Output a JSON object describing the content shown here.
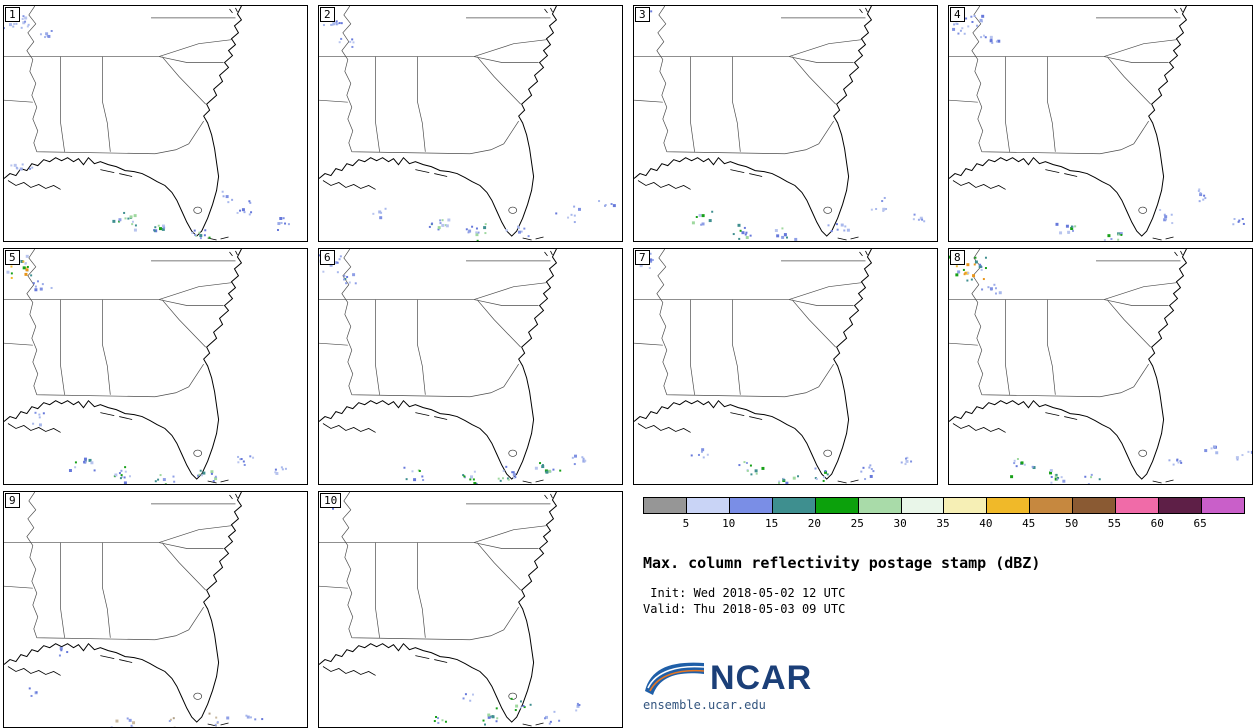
{
  "panels": [
    {
      "label": "1",
      "echoes": [
        [
          14,
          14,
          16,
          9,
          "blue"
        ],
        [
          40,
          26,
          6,
          6,
          "blue"
        ],
        [
          18,
          160,
          8,
          8,
          "blue"
        ],
        [
          118,
          215,
          14,
          10,
          "mix"
        ],
        [
          152,
          226,
          10,
          8,
          "mix"
        ],
        [
          196,
          228,
          10,
          8,
          "mix"
        ],
        [
          242,
          204,
          8,
          9,
          "blue"
        ],
        [
          282,
          218,
          7,
          7,
          "blue"
        ],
        [
          222,
          190,
          5,
          6,
          "blue"
        ]
      ]
    },
    {
      "label": "2",
      "echoes": [
        [
          12,
          16,
          12,
          8,
          "blue"
        ],
        [
          30,
          34,
          6,
          6,
          "blue"
        ],
        [
          60,
          210,
          5,
          6,
          "blue"
        ],
        [
          120,
          220,
          12,
          9,
          "mix"
        ],
        [
          158,
          228,
          12,
          9,
          "mix"
        ],
        [
          200,
          225,
          8,
          8,
          "blue"
        ],
        [
          250,
          210,
          7,
          8,
          "blue"
        ],
        [
          288,
          200,
          5,
          6,
          "blue"
        ]
      ]
    },
    {
      "label": "3",
      "echoes": [
        [
          10,
          12,
          8,
          7,
          "blue"
        ],
        [
          70,
          212,
          8,
          8,
          "mix"
        ],
        [
          110,
          226,
          10,
          8,
          "mix"
        ],
        [
          150,
          230,
          8,
          7,
          "mix"
        ],
        [
          205,
          222,
          8,
          8,
          "blue"
        ],
        [
          245,
          200,
          7,
          8,
          "blue"
        ],
        [
          285,
          212,
          6,
          6,
          "blue"
        ]
      ]
    },
    {
      "label": "4",
      "echoes": [
        [
          16,
          18,
          22,
          12,
          "blue"
        ],
        [
          44,
          34,
          8,
          7,
          "blue"
        ],
        [
          120,
          222,
          10,
          8,
          "mix"
        ],
        [
          165,
          230,
          8,
          7,
          "mix"
        ],
        [
          215,
          210,
          7,
          7,
          "blue"
        ],
        [
          252,
          192,
          8,
          8,
          "blue"
        ],
        [
          288,
          215,
          6,
          6,
          "blue"
        ]
      ]
    },
    {
      "label": "5",
      "echoes": [
        [
          14,
          16,
          22,
          12,
          "warm"
        ],
        [
          36,
          36,
          8,
          7,
          "blue"
        ],
        [
          30,
          170,
          6,
          6,
          "blue"
        ],
        [
          80,
          215,
          10,
          9,
          "mix"
        ],
        [
          120,
          228,
          12,
          9,
          "mix"
        ],
        [
          160,
          232,
          10,
          8,
          "mix"
        ],
        [
          200,
          226,
          10,
          8,
          "mix"
        ],
        [
          240,
          212,
          8,
          8,
          "blue"
        ],
        [
          278,
          222,
          6,
          7,
          "blue"
        ]
      ]
    },
    {
      "label": "6",
      "echoes": [
        [
          12,
          14,
          14,
          9,
          "blue"
        ],
        [
          34,
          28,
          8,
          7,
          "warm"
        ],
        [
          95,
          226,
          8,
          8,
          "mix"
        ],
        [
          150,
          230,
          10,
          8,
          "mix"
        ],
        [
          190,
          228,
          12,
          9,
          "mix"
        ],
        [
          228,
          220,
          10,
          9,
          "mix"
        ],
        [
          262,
          210,
          7,
          7,
          "blue"
        ]
      ]
    },
    {
      "label": "7",
      "echoes": [
        [
          10,
          12,
          8,
          7,
          "blue"
        ],
        [
          66,
          204,
          6,
          7,
          "blue"
        ],
        [
          120,
          222,
          10,
          9,
          "mix"
        ],
        [
          150,
          232,
          10,
          8,
          "mix"
        ],
        [
          185,
          228,
          8,
          8,
          "mix"
        ],
        [
          235,
          224,
          8,
          8,
          "blue"
        ],
        [
          272,
          214,
          6,
          6,
          "blue"
        ]
      ]
    },
    {
      "label": "8",
      "echoes": [
        [
          16,
          18,
          26,
          13,
          "warm"
        ],
        [
          42,
          40,
          8,
          7,
          "blue"
        ],
        [
          70,
          220,
          10,
          9,
          "mix"
        ],
        [
          105,
          230,
          12,
          9,
          "mix"
        ],
        [
          140,
          232,
          8,
          8,
          "mix"
        ],
        [
          228,
          216,
          7,
          7,
          "blue"
        ],
        [
          262,
          200,
          6,
          7,
          "blue"
        ],
        [
          295,
          205,
          5,
          6,
          "blue"
        ]
      ]
    },
    {
      "label": "9",
      "echoes": [
        [
          60,
          160,
          4,
          5,
          "blue"
        ],
        [
          30,
          200,
          4,
          5,
          "blue"
        ],
        [
          120,
          230,
          8,
          9,
          "tan"
        ],
        [
          170,
          233,
          8,
          8,
          "tan"
        ],
        [
          215,
          230,
          6,
          7,
          "tan"
        ],
        [
          250,
          226,
          5,
          6,
          "blue"
        ]
      ]
    },
    {
      "label": "10",
      "echoes": [
        [
          12,
          12,
          6,
          6,
          "blue"
        ],
        [
          120,
          230,
          6,
          7,
          "mix"
        ],
        [
          150,
          205,
          4,
          5,
          "blue"
        ],
        [
          172,
          226,
          10,
          8,
          "mix"
        ],
        [
          205,
          215,
          8,
          8,
          "mix"
        ],
        [
          235,
          228,
          6,
          7,
          "blue"
        ],
        [
          262,
          215,
          5,
          6,
          "blue"
        ]
      ]
    }
  ],
  "echo_palettes": {
    "blue": [
      "#b8c4ee",
      "#9aaae8",
      "#7e90e2",
      "#6678da",
      "#a8b8ec"
    ],
    "mix": [
      "#8e9ee6",
      "#6678da",
      "#3f8f8f",
      "#18a018",
      "#9fd89f",
      "#b8c4ee"
    ],
    "warm": [
      "#8e9ee6",
      "#6678da",
      "#18a018",
      "#f0b929",
      "#e8951a",
      "#3f8f8f",
      "#b8c4ee"
    ],
    "tan": [
      "#c9b9a0",
      "#b0a088",
      "#9aaae8",
      "#8e9ee6"
    ]
  },
  "colorbar": {
    "colors": [
      "#969696",
      "#c9d4f6",
      "#7a8ee6",
      "#3e8f8f",
      "#0ca10c",
      "#a9dba9",
      "#e9f6e9",
      "#f6efb5",
      "#f0b929",
      "#c6883f",
      "#8a5a33",
      "#f06ba8",
      "#5e1f47",
      "#c95fc9"
    ],
    "ticks": [
      "5",
      "10",
      "15",
      "20",
      "25",
      "30",
      "35",
      "40",
      "45",
      "50",
      "55",
      "60",
      "65"
    ]
  },
  "legend": {
    "title": "Max. column reflectivity postage stamp (dBZ)",
    "init_line": " Init: Wed 2018-05-02 12 UTC",
    "valid_line": "Valid: Thu 2018-05-03 09 UTC"
  },
  "logo": {
    "text": "NCAR",
    "url": "ensemble.ucar.edu"
  }
}
